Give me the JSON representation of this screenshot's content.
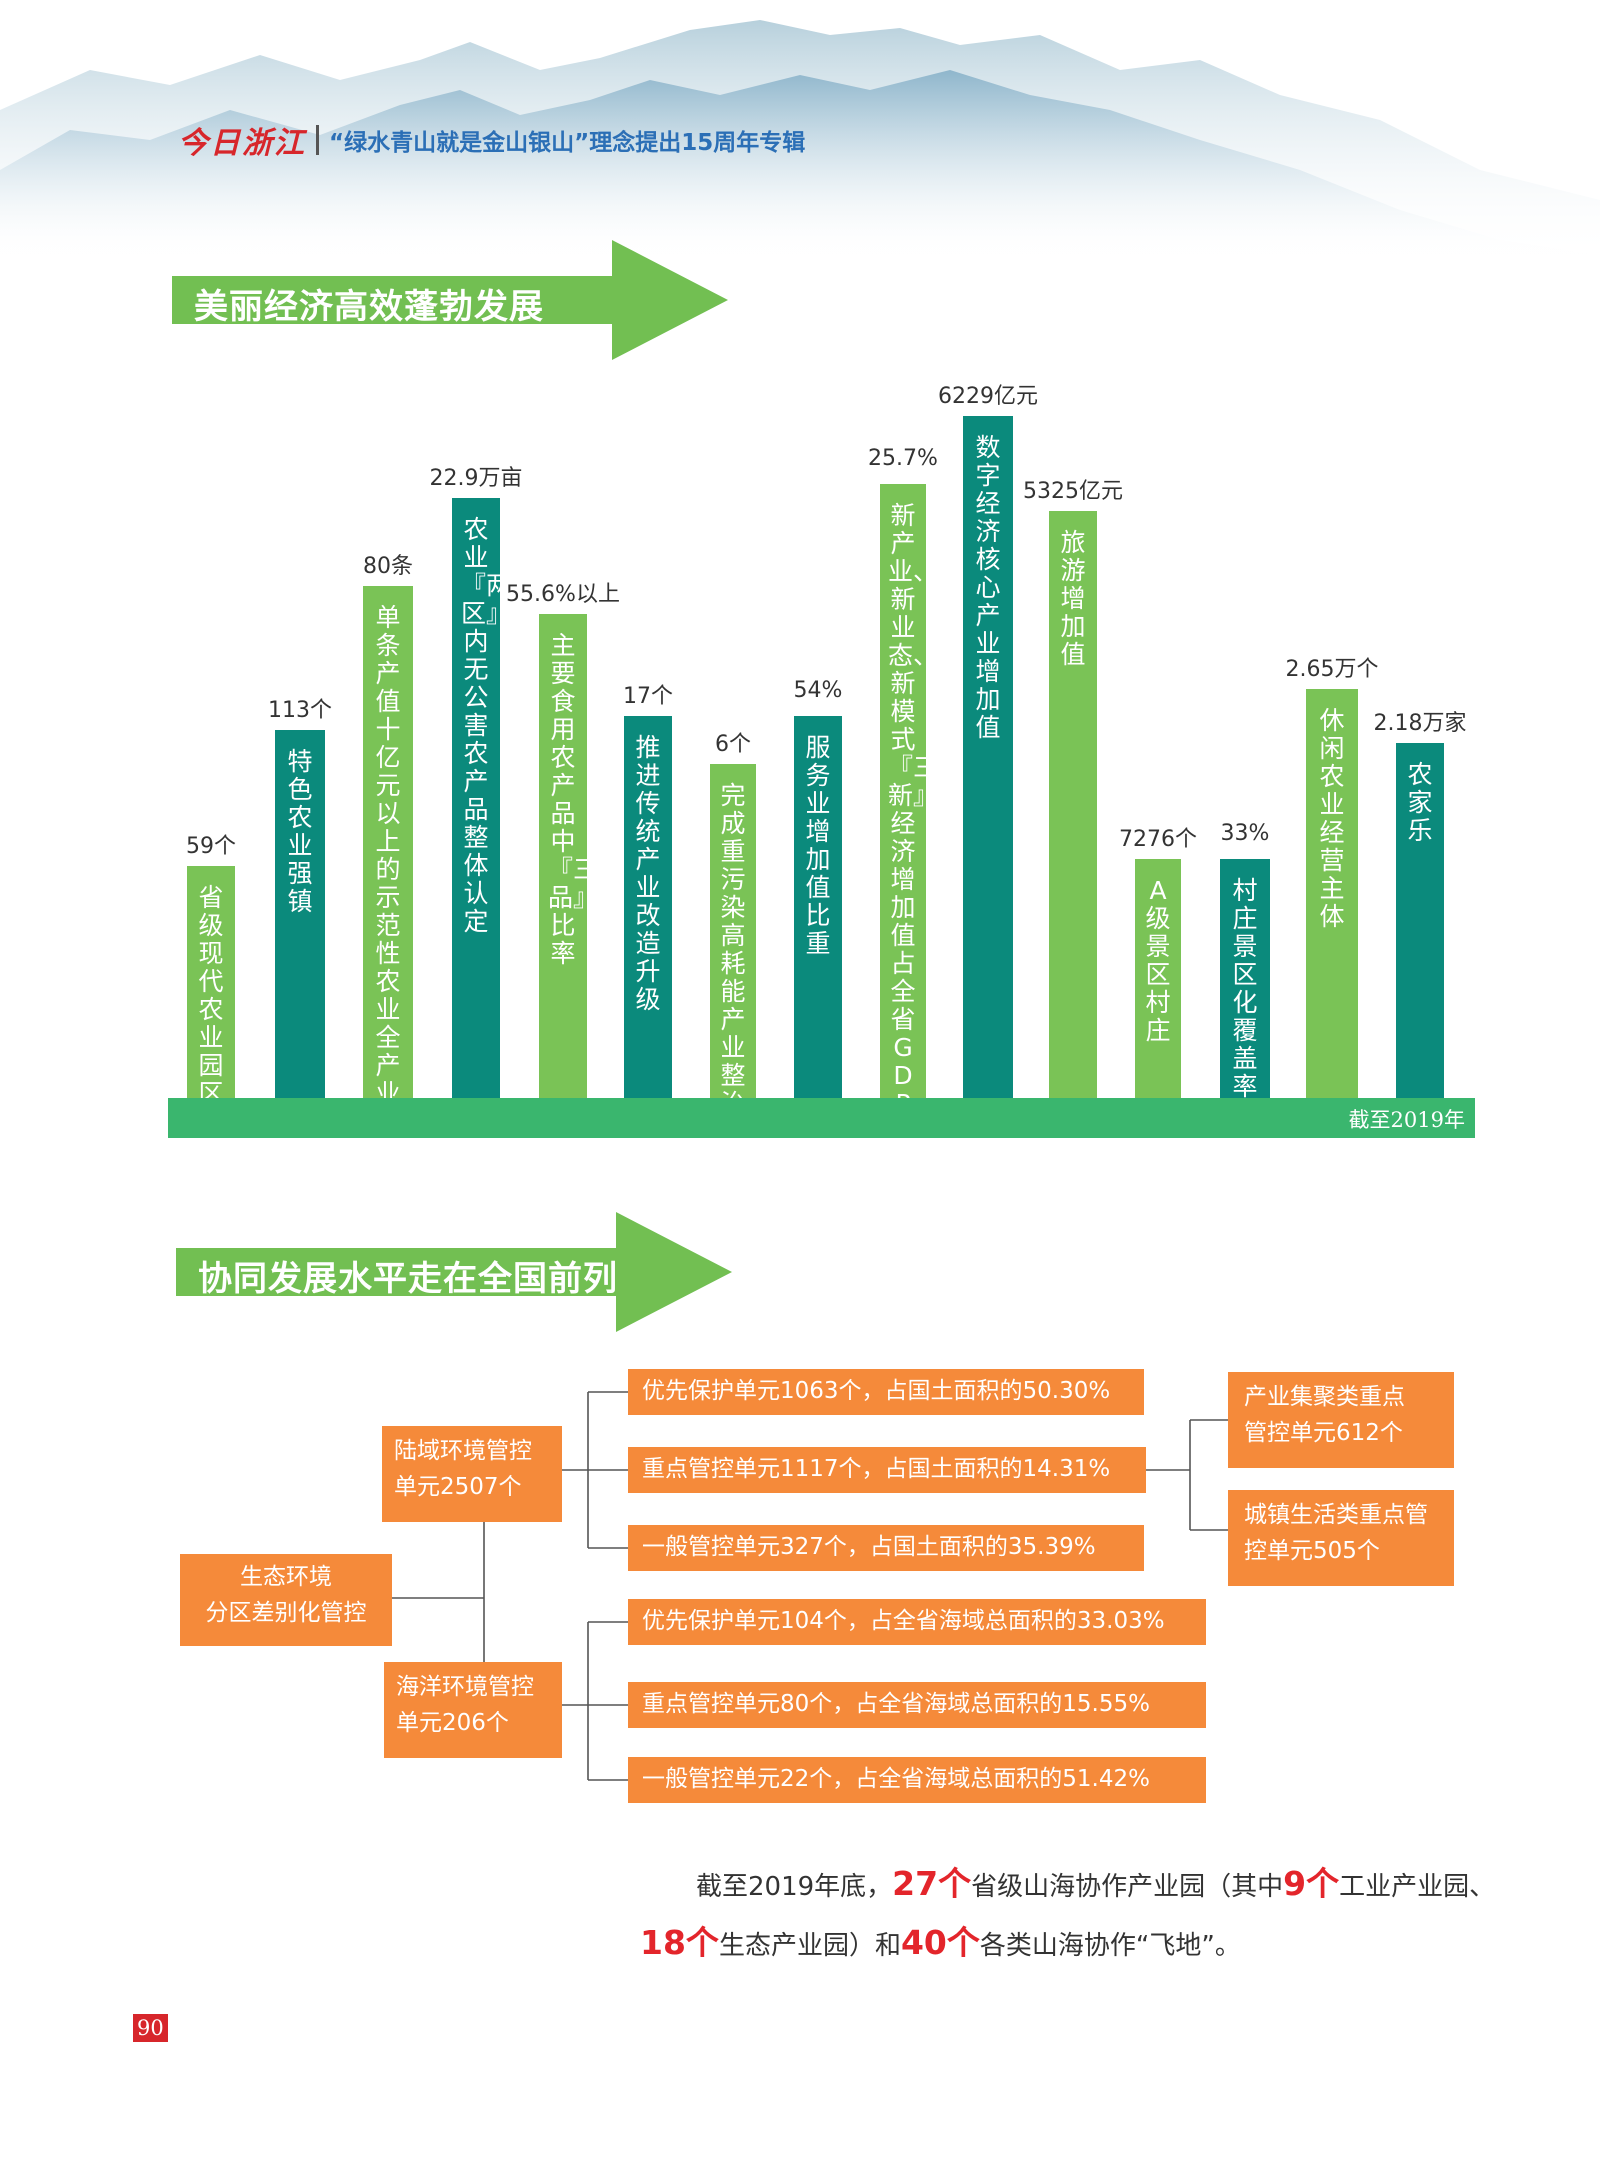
{
  "header": {
    "logo": "今日浙江",
    "title": "“绿水青山就是金山银山”理念提出15周年专辑"
  },
  "section1": {
    "title": "美丽经济高效蓬勃发展",
    "note": "截至2019年",
    "bars": [
      {
        "value": "59个",
        "label": "省级现代农业园区",
        "level": 0.34,
        "color": "#7ac356"
      },
      {
        "value": "113个",
        "label": "特色农业强镇",
        "level": 0.54,
        "color": "#0b8a7c"
      },
      {
        "value": "80条",
        "label": "单条产值十亿元以上的示范性农业全产业链",
        "level": 0.75,
        "color": "#7ac356"
      },
      {
        "value": "22.9万亩",
        "label": "农业『两区』内无公害农产品整体认定",
        "level": 0.88,
        "color": "#0b8a7c"
      },
      {
        "value": "55.6%以上",
        "label": "主要食用农产品中『三品』比率",
        "level": 0.71,
        "color": "#7ac356"
      },
      {
        "value": "17个",
        "label": "推进传统产业改造升级",
        "level": 0.56,
        "color": "#0b8a7c"
      },
      {
        "value": "6个",
        "label": "完成重污染高耗能产业整治",
        "level": 0.49,
        "color": "#7ac356"
      },
      {
        "value": "54%",
        "label": "服务业增加值比重",
        "level": 0.56,
        "color": "#0b8a7c"
      },
      {
        "value": "25.7%",
        "label": "新产业、新业态、新模式『三新』经济增加值占全省GDP",
        "level": 0.9,
        "color": "#7ac356"
      },
      {
        "value": "6229亿元",
        "label": "数字经济核心产业增加值",
        "level": 1.0,
        "color": "#0b8a7c"
      },
      {
        "value": "5325亿元",
        "label": "旅游增加值",
        "level": 0.86,
        "color": "#7ac356"
      },
      {
        "value": "7276个",
        "label": "A级景区村庄",
        "level": 0.35,
        "color": "#7ac356"
      },
      {
        "value": "33%",
        "label": "村庄景区化覆盖率",
        "level": 0.35,
        "color": "#0b8a7c"
      },
      {
        "value": "2.65万个",
        "label": "休闲农业经营主体",
        "level": 0.6,
        "color": "#7ac356"
      },
      {
        "value": "2.18万家",
        "label": "农家乐",
        "level": 0.52,
        "color": "#0b8a7c"
      }
    ]
  },
  "section2": {
    "title": "协同发展水平走在全国前列",
    "root": [
      "生态环境",
      "分区差别化管控"
    ],
    "land": [
      "陆域环境管控",
      "单元2507个"
    ],
    "sea": [
      "海洋环境管控",
      "单元206个"
    ],
    "land_items": [
      "优先保护单元1063个，占国土面积的50.30%",
      "重点管控单元1117个，占国土面积的14.31%",
      "一般管控单元327个，占国土面积的35.39%"
    ],
    "sea_items": [
      "优先保护单元104个，占全省海域总面积的33.03%",
      "重点管控单元80个，占全省海域总面积的15.55%",
      "一般管控单元22个，占全省海域总面积的51.42%"
    ],
    "key_sub": [
      [
        "产业集聚类重点",
        "管控单元612个"
      ],
      [
        "城镇生活类重点管",
        "控单元505个"
      ]
    ]
  },
  "summary": {
    "t1": "截至2019年底，",
    "h1": "27个",
    "t2": "省级山海协作产业园（其中",
    "h2": "9个",
    "t3": "工业产业园、",
    "h3": "18个",
    "t4": "生态产业园）和",
    "h4": "40个",
    "t5": "各类山海协作“飞地”。"
  },
  "page_number": "90"
}
